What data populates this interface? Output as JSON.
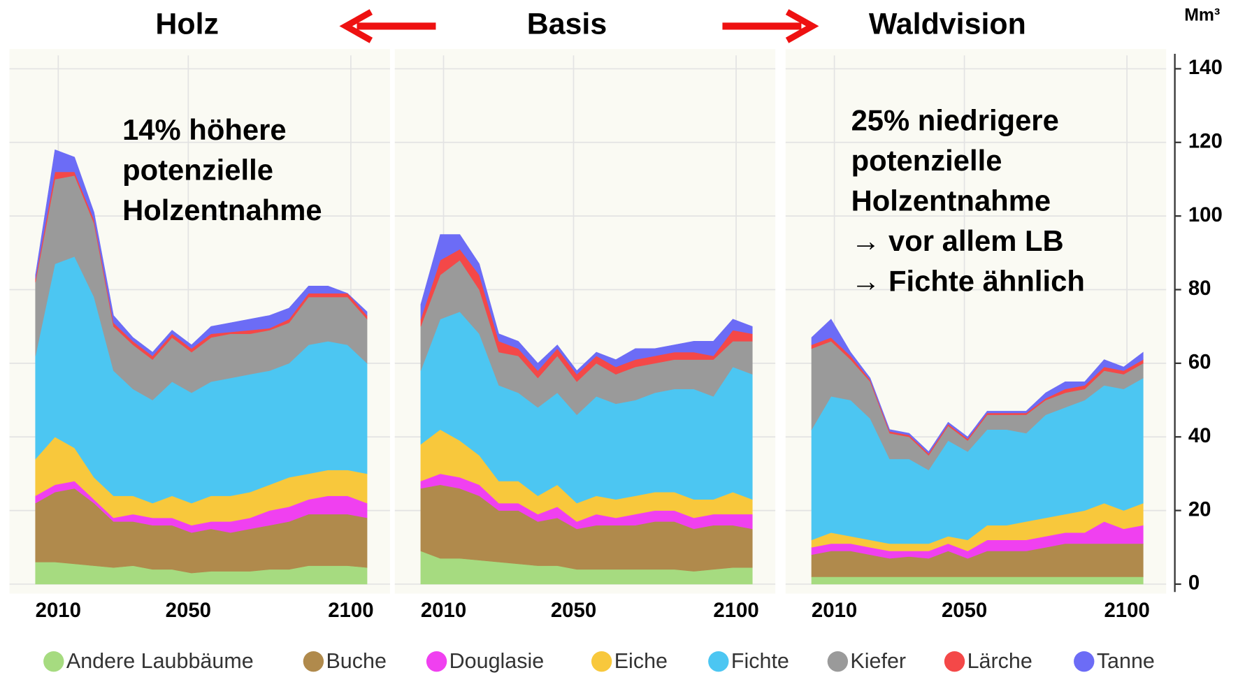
{
  "chart_data": {
    "type": "area",
    "stacked": true,
    "y_label": "Mm³",
    "x": [
      2003,
      2009,
      2015,
      2021,
      2027,
      2033,
      2039,
      2045,
      2051,
      2057,
      2063,
      2069,
      2075,
      2081,
      2087,
      2093,
      2099,
      2105
    ],
    "xlim": [
      1995,
      2114
    ],
    "xticks": [
      2010,
      2050,
      2100
    ],
    "ylim": [
      0,
      140
    ],
    "yticks": [
      0,
      20,
      40,
      60,
      80,
      100,
      120,
      140
    ],
    "grid": true,
    "series": [
      {
        "name": "Andere Laubbäume",
        "color": "#a6db80"
      },
      {
        "name": "Buche",
        "color": "#b08a4c"
      },
      {
        "name": "Douglasie",
        "color": "#f040f0"
      },
      {
        "name": "Eiche",
        "color": "#f8c83c"
      },
      {
        "name": "Fichte",
        "color": "#4cc6f2"
      },
      {
        "name": "Kiefer",
        "color": "#9a9a9a"
      },
      {
        "name": "Lärche",
        "color": "#f44848"
      },
      {
        "name": "Tanne",
        "color": "#6c6cf6"
      }
    ],
    "panels": [
      {
        "title": "Holz",
        "annotation": [
          "14% höhere",
          "potenzielle",
          "Holzentnahme"
        ],
        "series": [
          {
            "values": [
              6,
              6,
              5.5,
              5,
              4.5,
              5,
              4,
              4,
              3,
              3.5,
              3.5,
              3.5,
              4,
              4,
              5,
              5,
              5,
              4.5
            ]
          },
          {
            "values": [
              16,
              19,
              20.5,
              17,
              12.5,
              12,
              12,
              12,
              11,
              11.5,
              10.5,
              11.5,
              12,
              13,
              14,
              14,
              14,
              13.5
            ]
          },
          {
            "values": [
              2,
              2,
              2,
              1,
              1,
              2,
              2,
              2,
              2,
              2,
              3,
              3,
              4,
              4,
              4,
              5,
              5,
              4
            ]
          },
          {
            "values": [
              10,
              13,
              9,
              6,
              6,
              5,
              4,
              6,
              6,
              7,
              7,
              7,
              7,
              8,
              7,
              7,
              7,
              8
            ]
          },
          {
            "values": [
              28,
              47,
              52,
              49,
              34,
              29,
              28,
              31,
              30,
              31,
              32,
              32,
              31,
              31,
              35,
              35,
              34,
              30
            ]
          },
          {
            "values": [
              20,
              23,
              22,
              20,
              12,
              12,
              11,
              12,
              11,
              12,
              12,
              11,
              11,
              11,
              13,
              12,
              13,
              12
            ]
          },
          {
            "values": [
              1,
              2,
              1,
              1,
              1,
              1,
              1,
              1,
              1,
              1,
              0.5,
              1,
              0.5,
              1,
              1,
              1,
              1,
              1
            ]
          },
          {
            "values": [
              1,
              6,
              4,
              2,
              2,
              1,
              1,
              1,
              1,
              2,
              2.5,
              3,
              3.5,
              3,
              2,
              2,
              0,
              1
            ]
          }
        ]
      },
      {
        "title": "Basis",
        "series": [
          {
            "values": [
              9,
              7,
              7,
              6.5,
              6,
              5.5,
              5,
              5,
              4,
              4,
              4,
              4,
              4,
              4,
              3.5,
              4,
              4.5,
              4.5
            ]
          },
          {
            "values": [
              17,
              20,
              19,
              17.5,
              14,
              14.5,
              12,
              13,
              11,
              12,
              12,
              12,
              13,
              13,
              11.5,
              12,
              11.5,
              10.5
            ]
          },
          {
            "values": [
              2,
              3,
              3,
              3,
              2,
              2,
              2,
              3,
              2,
              3,
              2,
              3,
              3,
              3,
              3,
              3,
              3,
              4
            ]
          },
          {
            "values": [
              10,
              12,
              10,
              8,
              6,
              6,
              5,
              6,
              5,
              5,
              5,
              5,
              5,
              5,
              5,
              4,
              6,
              4
            ]
          },
          {
            "values": [
              20,
              30,
              35,
              33,
              26,
              24,
              24,
              25,
              24,
              27,
              26,
              26,
              27,
              28,
              30,
              28,
              34,
              34
            ]
          },
          {
            "values": [
              12,
              12,
              14,
              12,
              9,
              10,
              8,
              10,
              9,
              9,
              8,
              9,
              8,
              8,
              8,
              10,
              7,
              9
            ]
          },
          {
            "values": [
              2,
              4,
              3,
              4,
              3,
              2,
              2,
              2,
              2,
              2,
              2,
              2,
              2,
              2,
              2,
              1,
              3,
              2
            ]
          },
          {
            "values": [
              4,
              7,
              4,
              3,
              2,
              2,
              2,
              1,
              1,
              1,
              2,
              3,
              2,
              2,
              3,
              4,
              3,
              2
            ]
          }
        ]
      },
      {
        "title": "Waldvision",
        "annotation": [
          "25% niedrigere",
          "potenzielle",
          "Holzentnahme",
          "→ vor allem LB",
          "→ Fichte ähnlich"
        ],
        "series": [
          {
            "values": [
              2,
              2,
              2,
              2,
              2,
              2,
              2,
              2,
              2,
              2,
              2,
              2,
              2,
              2,
              2,
              2,
              2,
              2
            ]
          },
          {
            "values": [
              6,
              7,
              7,
              6,
              5,
              5.5,
              5,
              7,
              5,
              7,
              7,
              7,
              8,
              9,
              9,
              9,
              9,
              9
            ]
          },
          {
            "values": [
              2,
              2,
              2,
              2,
              2,
              1.5,
              2,
              2,
              2,
              3,
              3,
              3,
              3,
              3,
              3,
              6,
              4,
              5
            ]
          },
          {
            "values": [
              2,
              3,
              2,
              2,
              2,
              2,
              2,
              2,
              3,
              4,
              4,
              5,
              5,
              5,
              6,
              5,
              5,
              6
            ]
          },
          {
            "values": [
              30,
              37,
              37,
              33,
              23,
              23,
              20,
              26,
              24,
              26,
              26,
              24,
              28,
              29,
              30,
              32,
              33,
              34
            ]
          },
          {
            "values": [
              22,
              15,
              11,
              10,
              7,
              6,
              4,
              4,
              3,
              4,
              4,
              5,
              4,
              4,
              3,
              4,
              4,
              4
            ]
          },
          {
            "values": [
              1,
              1,
              1,
              0.5,
              0.5,
              0.5,
              0.5,
              0.5,
              0.5,
              0.5,
              0.5,
              0.5,
              0.5,
              1,
              1,
              1,
              1,
              1
            ]
          },
          {
            "values": [
              2,
              5,
              1,
              0.5,
              0.5,
              0.5,
              0.5,
              0.5,
              0.5,
              0.5,
              0.5,
              0.5,
              1.5,
              2,
              1,
              2,
              1,
              2
            ]
          }
        ]
      }
    ]
  }
}
